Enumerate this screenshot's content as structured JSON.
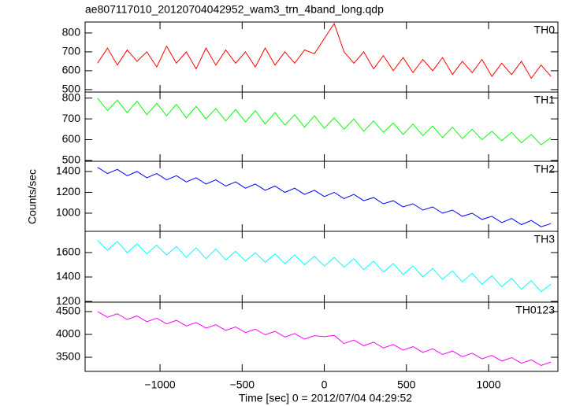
{
  "chart_data": [
    {
      "type": "line",
      "title": "ae807117010_20120704042952_wam3_trn_4band_long.qdp",
      "x": [
        -1380,
        -1320,
        -1260,
        -1200,
        -1140,
        -1080,
        -1020,
        -960,
        -900,
        -840,
        -780,
        -720,
        -660,
        -600,
        -540,
        -480,
        -420,
        -360,
        -300,
        -240,
        -180,
        -120,
        -60,
        0,
        60,
        120,
        180,
        240,
        300,
        360,
        420,
        480,
        540,
        600,
        660,
        720,
        780,
        840,
        900,
        960,
        1020,
        1080,
        1140,
        1200,
        1260,
        1320,
        1380
      ],
      "series": [
        {
          "name": "TH0",
          "color": "#ff0000",
          "values": [
            640,
            720,
            630,
            710,
            650,
            700,
            620,
            730,
            640,
            700,
            610,
            720,
            630,
            710,
            640,
            700,
            620,
            720,
            630,
            700,
            640,
            710,
            690,
            770,
            850,
            700,
            640,
            700,
            610,
            680,
            600,
            670,
            590,
            660,
            600,
            670,
            580,
            650,
            590,
            660,
            570,
            640,
            580,
            650,
            560,
            630,
            570
          ]
        }
      ],
      "xlim": [
        -1456,
        1422
      ],
      "ylim": [
        487,
        858
      ],
      "yticks": [
        500,
        600,
        700,
        800
      ]
    },
    {
      "type": "line",
      "x": [
        -1380,
        -1320,
        -1260,
        -1200,
        -1140,
        -1080,
        -1020,
        -960,
        -900,
        -840,
        -780,
        -720,
        -660,
        -600,
        -540,
        -480,
        -420,
        -360,
        -300,
        -240,
        -180,
        -120,
        -60,
        0,
        60,
        120,
        180,
        240,
        300,
        360,
        420,
        480,
        540,
        600,
        660,
        720,
        780,
        840,
        900,
        960,
        1020,
        1080,
        1140,
        1200,
        1260,
        1320,
        1380
      ],
      "series": [
        {
          "name": "TH1",
          "color": "#00ff00",
          "values": [
            800,
            740,
            790,
            730,
            785,
            720,
            775,
            715,
            770,
            705,
            760,
            700,
            750,
            690,
            745,
            685,
            740,
            675,
            730,
            670,
            720,
            660,
            715,
            655,
            705,
            650,
            700,
            640,
            690,
            635,
            680,
            625,
            675,
            620,
            665,
            610,
            660,
            605,
            650,
            600,
            640,
            595,
            635,
            585,
            625,
            575,
            610
          ]
        }
      ],
      "xlim": [
        -1456,
        1422
      ],
      "ylim": [
        496,
        829
      ],
      "yticks": [
        500,
        600,
        700,
        800
      ]
    },
    {
      "type": "line",
      "y_label": "Counts/sec",
      "x": [
        -1380,
        -1320,
        -1260,
        -1200,
        -1140,
        -1080,
        -1020,
        -960,
        -900,
        -840,
        -780,
        -720,
        -660,
        -600,
        -540,
        -480,
        -420,
        -360,
        -300,
        -240,
        -180,
        -120,
        -60,
        0,
        60,
        120,
        180,
        240,
        300,
        360,
        420,
        480,
        540,
        600,
        660,
        720,
        780,
        840,
        900,
        960,
        1020,
        1080,
        1140,
        1200,
        1260,
        1320,
        1380
      ],
      "series": [
        {
          "name": "TH2",
          "color": "#0000ff",
          "values": [
            1440,
            1380,
            1420,
            1360,
            1400,
            1340,
            1380,
            1320,
            1360,
            1300,
            1340,
            1280,
            1320,
            1260,
            1300,
            1240,
            1280,
            1220,
            1260,
            1200,
            1240,
            1180,
            1220,
            1160,
            1200,
            1140,
            1180,
            1120,
            1150,
            1090,
            1120,
            1060,
            1090,
            1030,
            1060,
            1000,
            1030,
            970,
            1000,
            940,
            970,
            910,
            950,
            890,
            930,
            870,
            900
          ]
        }
      ],
      "xlim": [
        -1456,
        1422
      ],
      "ylim": [
        826,
        1498
      ],
      "yticks": [
        1000,
        1200,
        1400
      ]
    },
    {
      "type": "line",
      "x": [
        -1380,
        -1320,
        -1260,
        -1200,
        -1140,
        -1080,
        -1020,
        -960,
        -900,
        -840,
        -780,
        -720,
        -660,
        -600,
        -540,
        -480,
        -420,
        -360,
        -300,
        -240,
        -180,
        -120,
        -60,
        0,
        60,
        120,
        180,
        240,
        300,
        360,
        420,
        480,
        540,
        600,
        660,
        720,
        780,
        840,
        900,
        960,
        1020,
        1080,
        1140,
        1200,
        1260,
        1320,
        1380
      ],
      "series": [
        {
          "name": "TH3",
          "color": "#00ffff",
          "values": [
            1700,
            1620,
            1690,
            1600,
            1670,
            1590,
            1660,
            1580,
            1650,
            1560,
            1640,
            1550,
            1630,
            1540,
            1610,
            1530,
            1600,
            1520,
            1590,
            1510,
            1580,
            1500,
            1570,
            1490,
            1560,
            1480,
            1550,
            1460,
            1530,
            1440,
            1510,
            1420,
            1490,
            1400,
            1470,
            1380,
            1450,
            1360,
            1430,
            1340,
            1410,
            1320,
            1390,
            1300,
            1370,
            1280,
            1340
          ]
        }
      ],
      "xlim": [
        -1456,
        1422
      ],
      "ylim": [
        1194,
        1774
      ],
      "yticks": [
        1200,
        1400,
        1600
      ]
    },
    {
      "type": "line",
      "x_label": "Time [sec] 0 = 2012/07/04 04:29:52",
      "x": [
        -1380,
        -1320,
        -1260,
        -1200,
        -1140,
        -1080,
        -1020,
        -960,
        -900,
        -840,
        -780,
        -720,
        -660,
        -600,
        -540,
        -480,
        -420,
        -360,
        -300,
        -240,
        -180,
        -120,
        -60,
        0,
        60,
        120,
        180,
        240,
        300,
        360,
        420,
        480,
        540,
        600,
        660,
        720,
        780,
        840,
        900,
        960,
        1020,
        1080,
        1140,
        1200,
        1260,
        1320,
        1380
      ],
      "series": [
        {
          "name": "TH0123",
          "color": "#ff00ff",
          "values": [
            4500,
            4376,
            4452,
            4328,
            4404,
            4280,
            4356,
            4232,
            4308,
            4184,
            4260,
            4136,
            4212,
            4088,
            4164,
            4040,
            4116,
            3992,
            4068,
            3944,
            4020,
            3896,
            3972,
            3950,
            3980,
            3800,
            3876,
            3752,
            3828,
            3704,
            3780,
            3656,
            3732,
            3608,
            3684,
            3560,
            3636,
            3512,
            3588,
            3464,
            3540,
            3416,
            3492,
            3368,
            3444,
            3320,
            3396
          ]
        }
      ],
      "xlim": [
        -1456,
        1422
      ],
      "ylim": [
        3190,
        4707
      ],
      "yticks": [
        3500,
        4000,
        4500
      ],
      "xticks": [
        {
          "value": -1000,
          "label": "−1000"
        },
        {
          "value": -500,
          "label": "−500"
        },
        0,
        500,
        1000
      ]
    }
  ]
}
